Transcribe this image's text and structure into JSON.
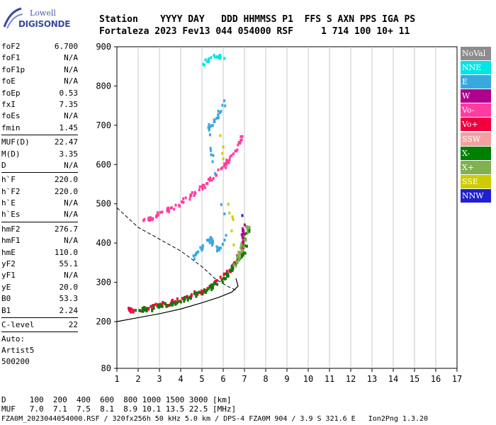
{
  "logo": {
    "line1": "Lowell",
    "line2": "DIGISONDE"
  },
  "header": {
    "line1": "Station    YYYY DAY   DDD HHMMSS P1  FFS S AXN PPS IGA PS",
    "line2": "Fortaleza 2023 Fev13 044 054000 RSF     1 714 100 10+ 11"
  },
  "params": [
    [
      {
        "k": "foF2",
        "v": "6.700"
      },
      {
        "k": "foF1",
        "v": "N/A"
      },
      {
        "k": "foF1p",
        "v": "N/A"
      },
      {
        "k": "foE",
        "v": "N/A"
      },
      {
        "k": "foEp",
        "v": "0.53"
      },
      {
        "k": "fxI",
        "v": "7.35"
      },
      {
        "k": "foEs",
        "v": "N/A"
      },
      {
        "k": "fmin",
        "v": "1.45"
      }
    ],
    [
      {
        "k": "MUF(D)",
        "v": "22.47"
      },
      {
        "k": "M(D)",
        "v": "3.35"
      },
      {
        "k": "D",
        "v": "N/A"
      }
    ],
    [
      {
        "k": "h`F",
        "v": "220.0"
      },
      {
        "k": "h`F2",
        "v": "220.0"
      },
      {
        "k": "h`E",
        "v": "N/A"
      },
      {
        "k": "h`Es",
        "v": "N/A"
      }
    ],
    [
      {
        "k": "hmF2",
        "v": "276.7"
      },
      {
        "k": "hmF1",
        "v": "N/A"
      },
      {
        "k": "hmE",
        "v": "110.0"
      },
      {
        "k": "yF2",
        "v": "55.1"
      },
      {
        "k": "yF1",
        "v": "N/A"
      },
      {
        "k": "yE",
        "v": "20.0"
      },
      {
        "k": "B0",
        "v": "53.3"
      },
      {
        "k": "B1",
        "v": "2.24"
      }
    ],
    [
      {
        "k": "C-level",
        "v": "22"
      }
    ]
  ],
  "auto": {
    "line1": "Auto:",
    "line2": "Artist5",
    "line3": "500200"
  },
  "legend": [
    {
      "label": "NoVal",
      "color": "#8c8c8c"
    },
    {
      "label": "NNE",
      "color": "#00e5e5"
    },
    {
      "label": "E",
      "color": "#3aa8e0"
    },
    {
      "label": "W",
      "color": "#b0008c"
    },
    {
      "label": "Vo-",
      "color": "#ff3ca0"
    },
    {
      "label": "Vo+",
      "color": "#f0003c"
    },
    {
      "label": "SSW",
      "color": "#f4a0a0"
    },
    {
      "label": "X-",
      "color": "#008000"
    },
    {
      "label": "X+",
      "color": "#80b050"
    },
    {
      "label": "SSE",
      "color": "#cccc00"
    },
    {
      "label": "NNW",
      "color": "#2020d0"
    }
  ],
  "footer": {
    "line1": "D     100  200  400  600  800 1000 1500 3000 [km]",
    "line2": "MUF   7.0  7.1  7.5  8.1  8.9 10.1 13.5 22.5 [MHz]",
    "line3": "FZA0M_2023044054000.RSF / 320fx256h 50 kHz 5.0 km / DPS-4 FZA0M 904 / 3.9 S 321.6 E   Ion2Png 1.3.20"
  },
  "chart_data": {
    "type": "scatter",
    "xlabel": "",
    "ylabel": "",
    "xlim": [
      1,
      17
    ],
    "ylim": [
      80,
      900
    ],
    "xticks": [
      1,
      2,
      3,
      4,
      5,
      6,
      7,
      8,
      9,
      10,
      11,
      12,
      13,
      14,
      15,
      16,
      17
    ],
    "yticks": [
      80,
      200,
      300,
      400,
      500,
      600,
      700,
      800,
      900
    ],
    "grid": "vertical",
    "legend_position": "right",
    "series": [
      {
        "name": "Vo+",
        "color": "#f0003c",
        "x": [
          1.5,
          2.0,
          2.5,
          3.0,
          3.5,
          4.0,
          4.5,
          5.0,
          5.5,
          6.0,
          6.4,
          6.7,
          6.9,
          7.0
        ],
        "y": [
          228,
          230,
          235,
          240,
          247,
          255,
          265,
          277,
          293,
          313,
          335,
          360,
          385,
          410
        ]
      },
      {
        "name": "Vo-",
        "color": "#ff3ca0",
        "x": [
          2.2,
          2.8,
          3.4,
          4.0,
          4.6,
          5.2,
          5.7,
          6.2,
          6.6,
          6.9
        ],
        "y": [
          458,
          468,
          484,
          502,
          525,
          551,
          578,
          606,
          637,
          668
        ]
      },
      {
        "name": "X-",
        "color": "#008000",
        "x": [
          1.8,
          2.6,
          3.4,
          4.2,
          5.0,
          5.6,
          6.2,
          6.6,
          7.0,
          7.2
        ],
        "y": [
          226,
          233,
          243,
          256,
          274,
          293,
          318,
          345,
          382,
          440
        ]
      },
      {
        "name": "X+",
        "color": "#80b050",
        "x": [
          6.5,
          6.8,
          7.0,
          7.2
        ],
        "y": [
          340,
          375,
          410,
          450
        ]
      },
      {
        "name": "E",
        "color": "#3aa8e0",
        "x": [
          4.6,
          5.0,
          5.4,
          5.8,
          6.2,
          5.3,
          5.7,
          6.1
        ],
        "y": [
          360,
          390,
          410,
          380,
          420,
          690,
          720,
          760
        ]
      },
      {
        "name": "NNE",
        "color": "#00e5e5",
        "x": [
          5.0,
          5.6,
          6.0
        ],
        "y": [
          850,
          880,
          870
        ]
      },
      {
        "name": "W",
        "color": "#b0008c",
        "x": [
          6.9,
          7.0
        ],
        "y": [
          400,
          460
        ]
      },
      {
        "name": "SSE",
        "color": "#cccc00",
        "x": [
          5.9,
          6.6
        ],
        "y": [
          680,
          370
        ]
      },
      {
        "name": "NNW",
        "color": "#2020d0",
        "x": [
          6.9
        ],
        "y": [
          470
        ]
      }
    ],
    "profile_solid": {
      "x": [
        1,
        2,
        3,
        4,
        5,
        5.8,
        6.4,
        6.7,
        6.6
      ],
      "y": [
        200,
        210,
        220,
        232,
        248,
        262,
        275,
        290,
        310
      ]
    },
    "profile_dashed": {
      "x": [
        1,
        2,
        3,
        4,
        5,
        5.6,
        6.2,
        6.6
      ],
      "y": [
        490,
        440,
        410,
        380,
        340,
        310,
        290,
        280
      ]
    }
  }
}
